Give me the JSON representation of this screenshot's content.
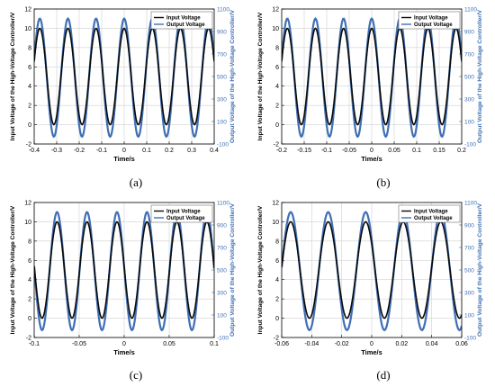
{
  "colors": {
    "input": "#0a0a0a",
    "output": "#3f6fb5",
    "right_axis": "#3f6fb5",
    "grid": "#d0d0d0",
    "legend_bg": "#ffffff"
  },
  "chart_data": [
    {
      "type": "line",
      "caption": "(a)",
      "xlabel": "Time/s",
      "ylabel_left": "Input Voltage of the High-Voltage Controller/V",
      "ylabel_right": "Output Voltage of the High-Voltage Controller/V",
      "xlim": [
        -0.4,
        0.4
      ],
      "ylim_left": [
        -2,
        12
      ],
      "ylim_right": [
        -100,
        1100
      ],
      "xticks": [
        "-0.4",
        "-0.3",
        "-0.2",
        "-0.1",
        "0",
        "0.1",
        "0.2",
        "0.3",
        "0.4"
      ],
      "yticks_left": [
        "-2",
        "0",
        "2",
        "4",
        "6",
        "8",
        "10",
        "12"
      ],
      "yticks_right": [
        "-100",
        "100",
        "300",
        "500",
        "700",
        "900",
        "1100"
      ],
      "grid": true,
      "legend_position": "top-right",
      "series": [
        {
          "name": "Input Voltage",
          "axis": "left",
          "min": 0,
          "max": 10,
          "period": 0.125,
          "phase": 0,
          "samples": 240
        },
        {
          "name": "Output Voltage",
          "axis": "right",
          "min": -35,
          "max": 1015,
          "period": 0.125,
          "phase": 0,
          "samples": 240
        }
      ]
    },
    {
      "type": "line",
      "caption": "(b)",
      "xlabel": "Time/s",
      "ylabel_left": "Input Voltage of the High-Voltage Controller/V",
      "ylabel_right": "Output Voltage of the High-Voltage Controller/V",
      "xlim": [
        -0.2,
        0.2
      ],
      "ylim_left": [
        -2,
        12
      ],
      "ylim_right": [
        -100,
        1100
      ],
      "xticks": [
        "-0.2",
        "-0.15",
        "-0.1",
        "-0.05",
        "0",
        "0.05",
        "0.1",
        "0.15",
        "0.2"
      ],
      "yticks_left": [
        "-2",
        "0",
        "2",
        "4",
        "6",
        "8",
        "10",
        "12"
      ],
      "yticks_right": [
        "-100",
        "100",
        "300",
        "500",
        "700",
        "900",
        "1100"
      ],
      "grid": true,
      "legend_position": "top-right",
      "series": [
        {
          "name": "Input Voltage",
          "axis": "left",
          "min": 0,
          "max": 10,
          "period": 0.0625,
          "phase": 0,
          "samples": 240
        },
        {
          "name": "Output Voltage",
          "axis": "right",
          "min": -35,
          "max": 1015,
          "period": 0.0625,
          "phase": 0,
          "samples": 240
        }
      ]
    },
    {
      "type": "line",
      "caption": "(c)",
      "xlabel": "Time/s",
      "ylabel_left": "Input Voltage of the High-Voltage Controller/V",
      "ylabel_right": "Output Voltage of the High-Voltage Controller/V",
      "xlim": [
        -0.1,
        0.1
      ],
      "ylim_left": [
        -2,
        12
      ],
      "ylim_right": [
        -100,
        1100
      ],
      "xticks": [
        "-0.1",
        "-0.05",
        "0",
        "0.05",
        "0.1"
      ],
      "yticks_left": [
        "-2",
        "0",
        "2",
        "4",
        "6",
        "8",
        "10",
        "12"
      ],
      "yticks_right": [
        "-100",
        "100",
        "300",
        "500",
        "700",
        "900",
        "1100"
      ],
      "grid": true,
      "legend_position": "top-right",
      "series": [
        {
          "name": "Input Voltage",
          "axis": "left",
          "min": 0,
          "max": 10,
          "period": 0.0333,
          "phase": -0.008,
          "samples": 240
        },
        {
          "name": "Output Voltage",
          "axis": "right",
          "min": -35,
          "max": 1015,
          "period": 0.0333,
          "phase": -0.008,
          "samples": 240
        }
      ]
    },
    {
      "type": "line",
      "caption": "(d)",
      "xlabel": "Time/s",
      "ylabel_left": "Input Voltage of the High-Voltage Controller/V",
      "ylabel_right": "Output Voltage of the High-Voltage Controller/V",
      "xlim": [
        -0.06,
        0.06
      ],
      "ylim_left": [
        -2,
        12
      ],
      "ylim_right": [
        -100,
        1100
      ],
      "xticks": [
        "-0.06",
        "-0.04",
        "-0.02",
        "0",
        "0.02",
        "0.04",
        "0.06"
      ],
      "yticks_left": [
        "-2",
        "0",
        "2",
        "4",
        "6",
        "8",
        "10",
        "12"
      ],
      "yticks_right": [
        "-100",
        "100",
        "300",
        "500",
        "700",
        "900",
        "1100"
      ],
      "grid": true,
      "legend_position": "top-right",
      "series": [
        {
          "name": "Input Voltage",
          "axis": "left",
          "min": 0,
          "max": 10,
          "period": 0.025,
          "phase": -0.004,
          "samples": 240
        },
        {
          "name": "Output Voltage",
          "axis": "right",
          "min": -35,
          "max": 1015,
          "period": 0.025,
          "phase": -0.004,
          "samples": 240
        }
      ]
    }
  ]
}
